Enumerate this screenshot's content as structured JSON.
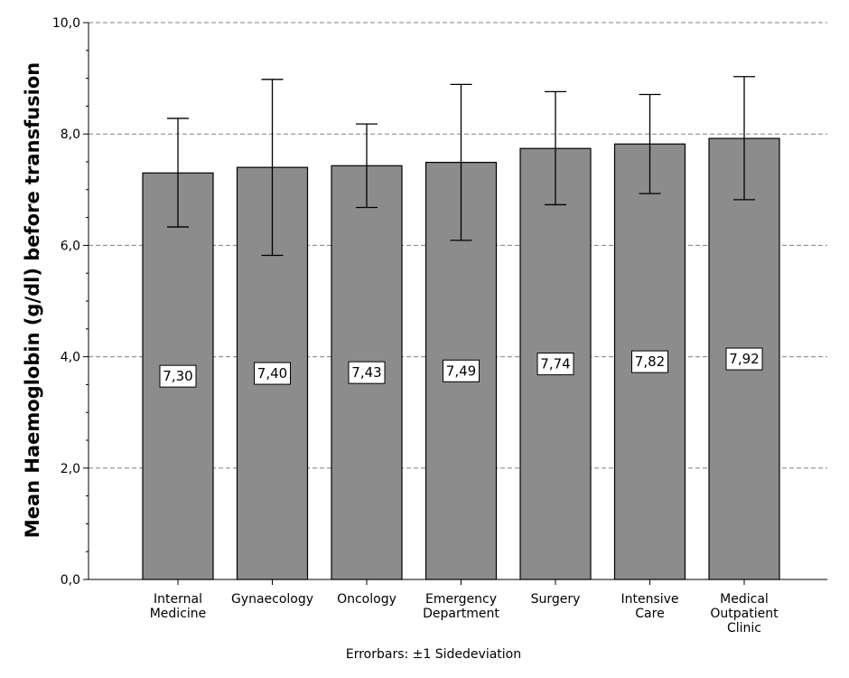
{
  "chart_data": {
    "type": "bar",
    "title": "",
    "xlabel": "",
    "ylabel": "Mean Haemoglobin (g/dl) before transfusion",
    "ylim": [
      0,
      10
    ],
    "yticks": [
      "0,0",
      "2,0",
      "4,0",
      "6,0",
      "8,0",
      "10,0"
    ],
    "ytick_values": [
      0,
      2,
      4,
      6,
      8,
      10
    ],
    "grid": true,
    "categories": [
      [
        "Internal",
        "Medicine"
      ],
      [
        "Gynaecology"
      ],
      [
        "Oncology"
      ],
      [
        "Emergency",
        "Department"
      ],
      [
        "Surgery"
      ],
      [
        "Intensive",
        "Care"
      ],
      [
        "Medical",
        "Outpatient",
        "Clinic"
      ]
    ],
    "values": [
      7.3,
      7.4,
      7.43,
      7.49,
      7.74,
      7.82,
      7.92
    ],
    "value_labels": [
      "7,30",
      "7,40",
      "7,43",
      "7,49",
      "7,74",
      "7,82",
      "7,92"
    ],
    "error_low": [
      6.33,
      5.82,
      6.68,
      6.09,
      6.73,
      6.93,
      6.82
    ],
    "error_high": [
      8.28,
      8.98,
      8.18,
      8.89,
      8.76,
      8.71,
      9.03
    ],
    "footnote": "Errorbars: ±1 Sidedeviation",
    "colors": {
      "bar": "#8c8c8c",
      "bar_stroke": "#000000",
      "grid": "#808080"
    }
  }
}
